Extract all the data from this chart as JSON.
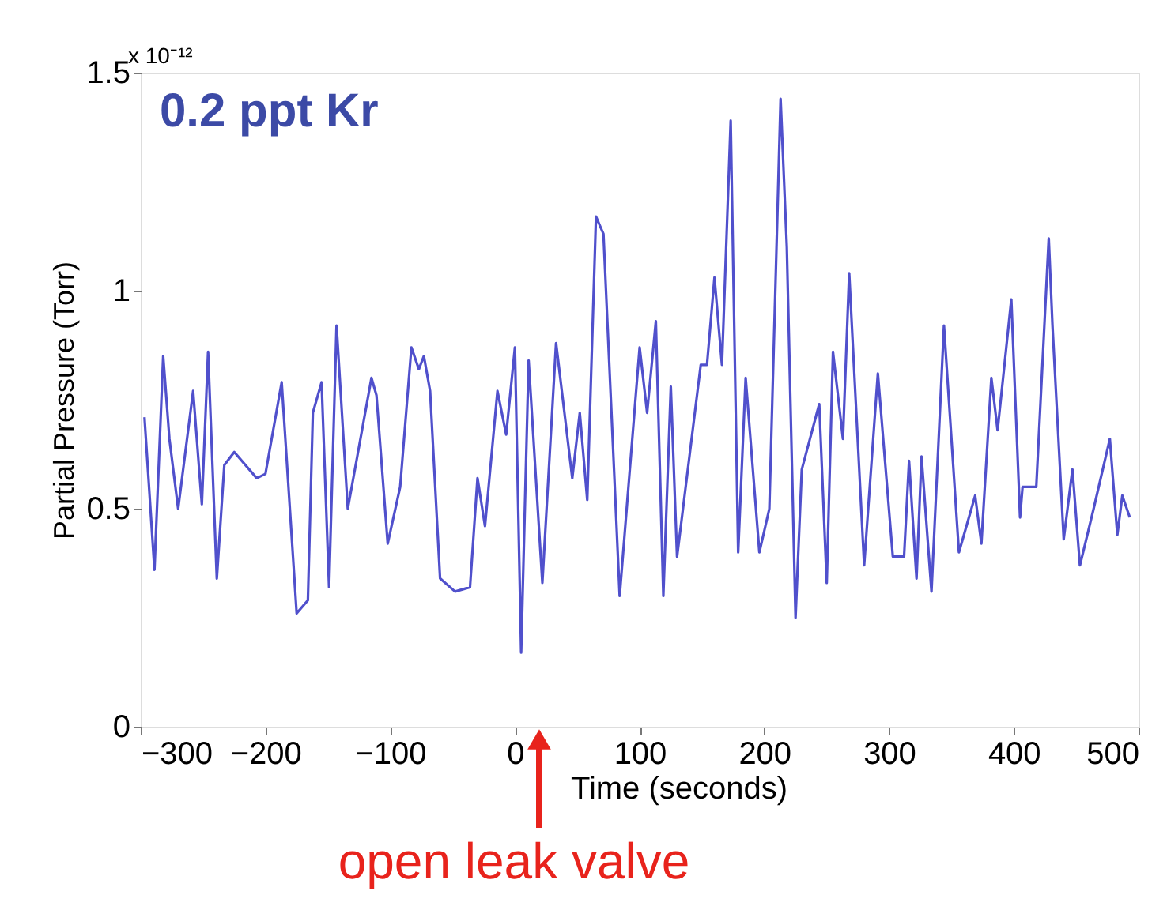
{
  "chart_data": {
    "type": "line",
    "title": "0.2 ppt Kr",
    "xlabel": "Time (seconds)",
    "ylabel": "Partial Pressure (Torr)",
    "annotations": [
      "x 10⁻¹²",
      "open leak valve"
    ],
    "xlim": [
      -300,
      500
    ],
    "xticks": [
      -300,
      -200,
      -100,
      0,
      100,
      200,
      300,
      400,
      500
    ],
    "ylim": [
      0,
      1.5
    ],
    "yticks": [
      0,
      0.5,
      1,
      1.5
    ],
    "grid": false,
    "marker": "none",
    "line_style": "solid",
    "series": [
      {
        "color": "#5050cc",
        "x": [
          -297,
          -289,
          -282,
          -277,
          -270,
          -258,
          -251,
          -246,
          -239,
          -233,
          -225,
          -207,
          -200,
          -187,
          -175,
          -166,
          -162,
          -155,
          -149,
          -143,
          -134,
          -115,
          -111,
          -102,
          -92,
          -83,
          -77,
          -73,
          -68,
          -60,
          -48,
          -36,
          -30,
          -24,
          -14,
          -7,
          0,
          5,
          11,
          22,
          33,
          46,
          52,
          58,
          65,
          71,
          84,
          100,
          106,
          113,
          119,
          125,
          130,
          149,
          154,
          160,
          166,
          173,
          179,
          185,
          196,
          204,
          213,
          218,
          225,
          230,
          244,
          250,
          255,
          263,
          268,
          280,
          291,
          303,
          312,
          316,
          322,
          326,
          334,
          344,
          356,
          369,
          374,
          382,
          387,
          398,
          405,
          407,
          418,
          428,
          431,
          440,
          447,
          453,
          464,
          477,
          483,
          487,
          493
        ],
        "values": [
          0.71,
          0.36,
          0.85,
          0.66,
          0.5,
          0.77,
          0.51,
          0.86,
          0.34,
          0.6,
          0.63,
          0.57,
          0.58,
          0.79,
          0.26,
          0.29,
          0.72,
          0.79,
          0.32,
          0.92,
          0.5,
          0.8,
          0.76,
          0.42,
          0.55,
          0.87,
          0.82,
          0.85,
          0.77,
          0.34,
          0.31,
          0.32,
          0.57,
          0.46,
          0.77,
          0.67,
          0.87,
          0.17,
          0.84,
          0.33,
          0.88,
          0.57,
          0.72,
          0.52,
          1.17,
          1.13,
          0.3,
          0.87,
          0.72,
          0.93,
          0.3,
          0.78,
          0.39,
          0.83,
          0.83,
          1.03,
          0.83,
          1.39,
          0.4,
          0.8,
          0.4,
          0.5,
          1.44,
          1.1,
          0.25,
          0.59,
          0.74,
          0.33,
          0.86,
          0.66,
          1.04,
          0.37,
          0.81,
          0.39,
          0.39,
          0.61,
          0.34,
          0.62,
          0.31,
          0.92,
          0.4,
          0.53,
          0.42,
          0.8,
          0.68,
          0.98,
          0.48,
          0.55,
          0.55,
          1.12,
          0.92,
          0.43,
          0.59,
          0.37,
          0.5,
          0.66,
          0.44,
          0.53,
          0.48
        ]
      }
    ]
  }
}
